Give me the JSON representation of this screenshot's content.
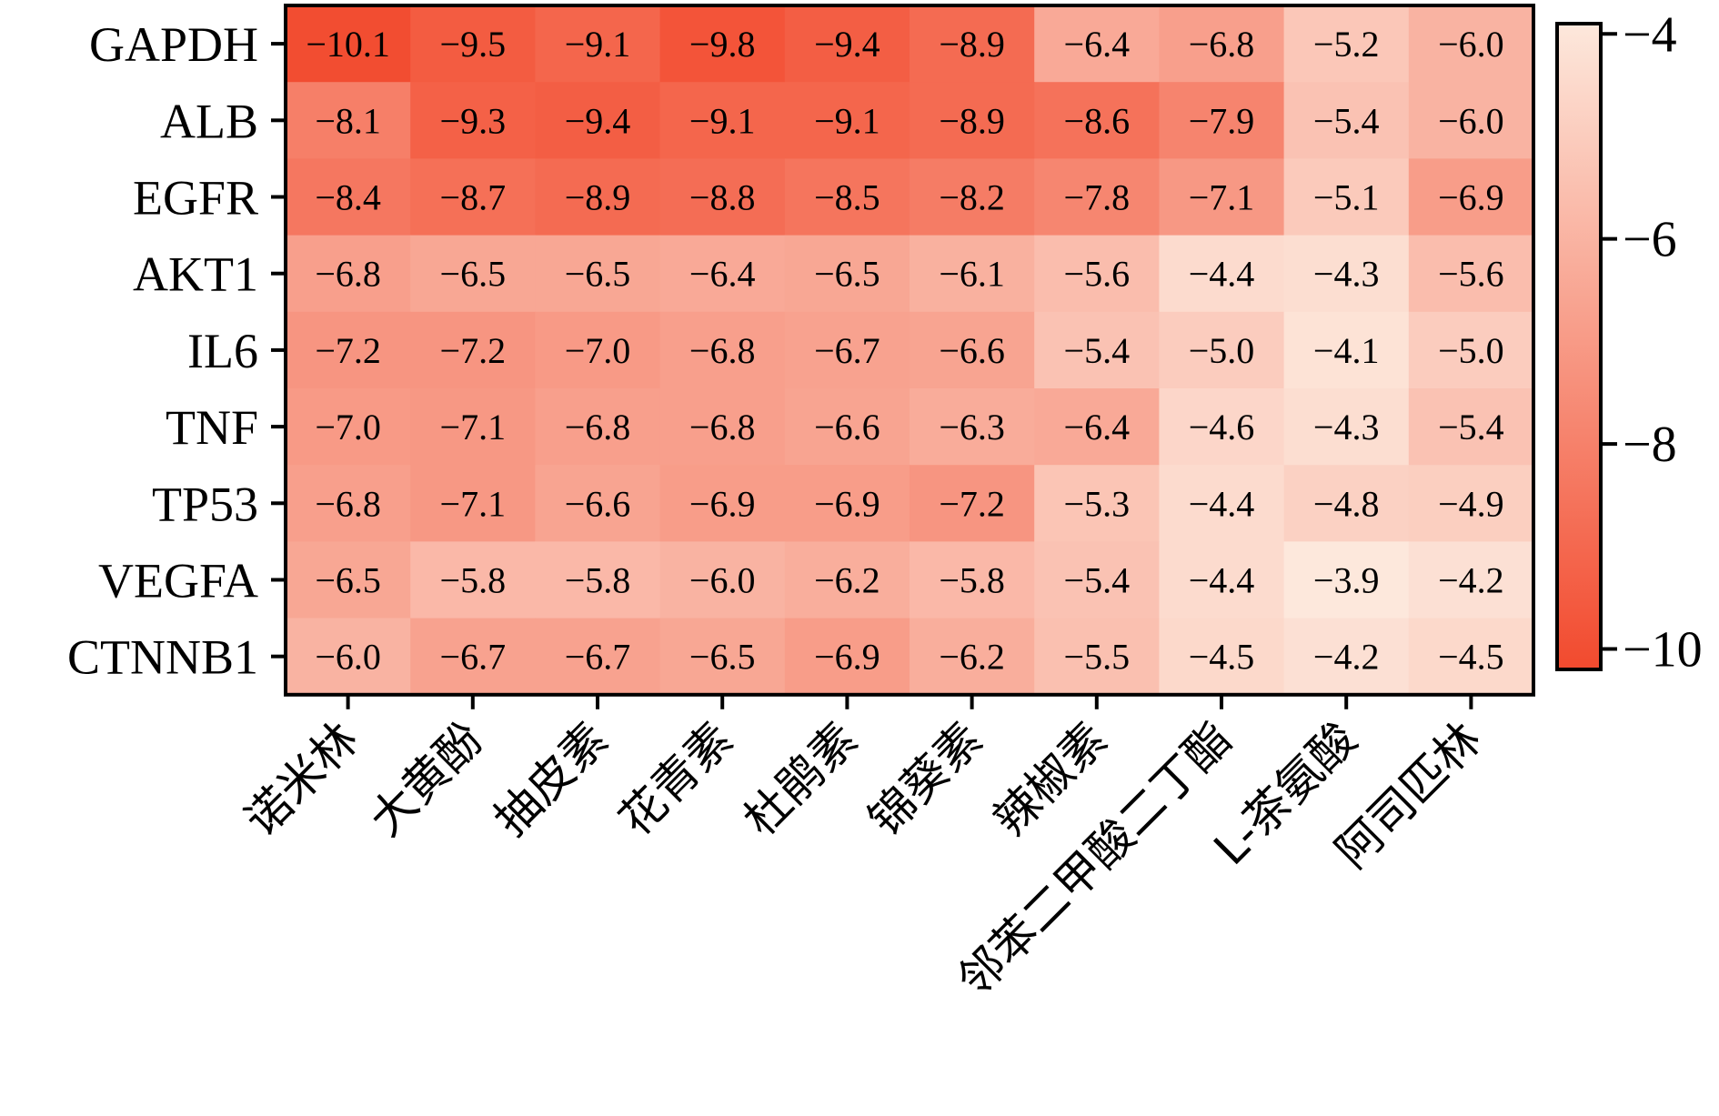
{
  "chart_data": {
    "type": "heatmap",
    "rows": [
      "GAPDH",
      "ALB",
      "EGFR",
      "AKT1",
      "IL6",
      "TNF",
      "TP53",
      "VEGFA",
      "CTNNB1"
    ],
    "columns": [
      "诺米林",
      "大黄酚",
      "抽皮素",
      "花青素",
      "杜鹃素",
      "锦葵素",
      "辣椒素",
      "邻苯二甲酸二丁酯",
      "L-茶氨酸",
      "阿司匹林"
    ],
    "values": [
      [
        -10.1,
        -9.5,
        -9.1,
        -9.8,
        -9.4,
        -8.9,
        -6.4,
        -6.8,
        -5.2,
        -6.0
      ],
      [
        -8.1,
        -9.3,
        -9.4,
        -9.1,
        -9.1,
        -8.9,
        -8.6,
        -7.9,
        -5.4,
        -6.0
      ],
      [
        -8.4,
        -8.7,
        -8.9,
        -8.8,
        -8.5,
        -8.2,
        -7.8,
        -7.1,
        -5.1,
        -6.9
      ],
      [
        -6.8,
        -6.5,
        -6.5,
        -6.4,
        -6.5,
        -6.1,
        -5.6,
        -4.4,
        -4.3,
        -5.6
      ],
      [
        -7.2,
        -7.2,
        -7.0,
        -6.8,
        -6.7,
        -6.6,
        -5.4,
        -5.0,
        -4.1,
        -5.0
      ],
      [
        -7.0,
        -7.1,
        -6.8,
        -6.8,
        -6.6,
        -6.3,
        -6.4,
        -4.6,
        -4.3,
        -5.4
      ],
      [
        -6.8,
        -7.1,
        -6.6,
        -6.9,
        -6.9,
        -7.2,
        -5.3,
        -4.4,
        -4.8,
        -4.9
      ],
      [
        -6.5,
        -5.8,
        -5.8,
        -6.0,
        -6.2,
        -5.8,
        -5.4,
        -4.4,
        -3.9,
        -4.2
      ],
      [
        -6.0,
        -6.7,
        -6.7,
        -6.5,
        -6.9,
        -6.2,
        -5.5,
        -4.5,
        -4.2,
        -4.5
      ]
    ],
    "value_labels": [
      [
        "−10.1",
        "−9.5",
        "−9.1",
        "−9.8",
        "−9.4",
        "−8.9",
        "−6.4",
        "−6.8",
        "−5.2",
        "−6.0"
      ],
      [
        "−8.1",
        "−9.3",
        "−9.4",
        "−9.1",
        "−9.1",
        "−8.9",
        "−8.6",
        "−7.9",
        "−5.4",
        "−6.0"
      ],
      [
        "−8.4",
        "−8.7",
        "−8.9",
        "−8.8",
        "−8.5",
        "−8.2",
        "−7.8",
        "−7.1",
        "−5.1",
        "−6.9"
      ],
      [
        "−6.8",
        "−6.5",
        "−6.5",
        "−6.4",
        "−6.5",
        "−6.1",
        "−5.6",
        "−4.4",
        "−4.3",
        "−5.6"
      ],
      [
        "−7.2",
        "−7.2",
        "−7.0",
        "−6.8",
        "−6.7",
        "−6.6",
        "−5.4",
        "−5.0",
        "−4.1",
        "−5.0"
      ],
      [
        "−7.0",
        "−7.1",
        "−6.8",
        "−6.8",
        "−6.6",
        "−6.3",
        "−6.4",
        "−4.6",
        "−4.3",
        "−5.4"
      ],
      [
        "−6.8",
        "−7.1",
        "−6.6",
        "−6.9",
        "−6.9",
        "−7.2",
        "−5.3",
        "−4.4",
        "−4.8",
        "−4.9"
      ],
      [
        "−6.5",
        "−5.8",
        "−5.8",
        "−6.0",
        "−6.2",
        "−5.8",
        "−5.4",
        "−4.4",
        "−3.9",
        "−4.2"
      ],
      [
        "−6.0",
        "−6.7",
        "−6.7",
        "−6.5",
        "−6.9",
        "−6.2",
        "−5.5",
        "−4.5",
        "−4.2",
        "−4.5"
      ]
    ],
    "colorbar": {
      "min": -10.2,
      "max": -3.9,
      "ticks": [
        -4,
        -6,
        -8,
        -10
      ],
      "tick_labels": [
        "−4",
        "−6",
        "−8",
        "−10"
      ],
      "color_low": "#f24a2e",
      "color_high": "#fde8dc"
    }
  }
}
